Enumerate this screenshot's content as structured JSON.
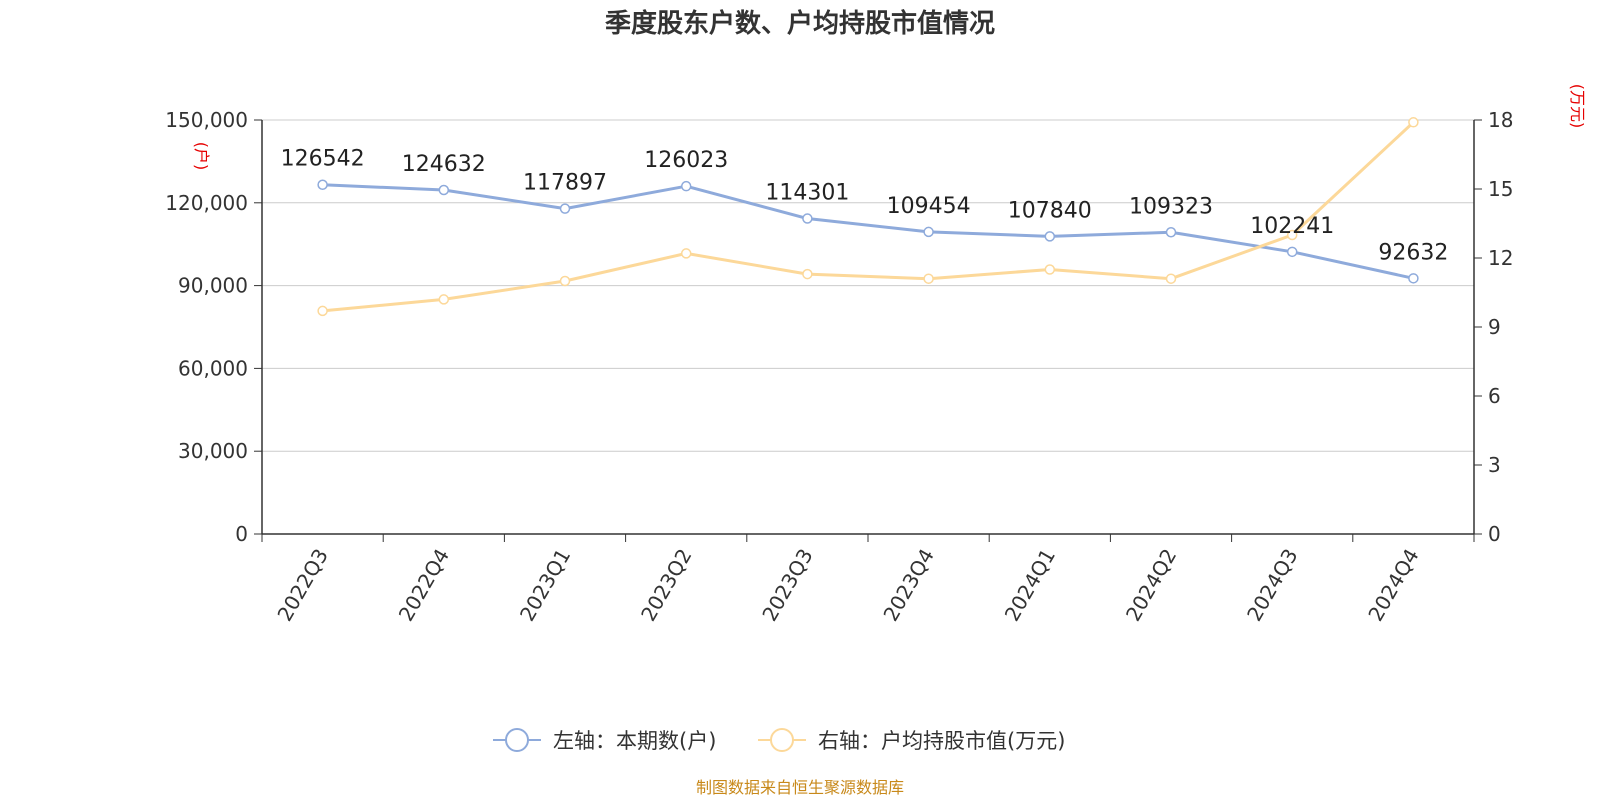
{
  "chart_data": {
    "type": "line",
    "title": "季度股东户数、户均持股市值情况",
    "categories": [
      "2022Q3",
      "2022Q4",
      "2023Q1",
      "2023Q2",
      "2023Q3",
      "2023Q4",
      "2024Q1",
      "2024Q2",
      "2024Q3",
      "2024Q4"
    ],
    "series": [
      {
        "name": "左轴：本期数(户)",
        "axis": "left",
        "color": "#8eaadb",
        "values": [
          126542,
          124632,
          117897,
          126023,
          114301,
          109454,
          107840,
          109323,
          102241,
          92632
        ],
        "show_labels": true
      },
      {
        "name": "右轴：户均持股市值(万元)",
        "axis": "right",
        "color": "#fcd899",
        "values": [
          9.7,
          10.2,
          11.0,
          12.2,
          11.3,
          11.1,
          11.5,
          11.1,
          13.0,
          17.9
        ],
        "show_labels": false
      }
    ],
    "left_axis": {
      "unit": "(户)",
      "ylim": [
        0,
        150000
      ],
      "ticks": [
        0,
        30000,
        60000,
        90000,
        120000,
        150000
      ],
      "tick_labels": [
        "0",
        "30,000",
        "60,000",
        "90,000",
        "120,000",
        "150,000"
      ]
    },
    "right_axis": {
      "unit": "(万元)",
      "ylim": [
        0,
        18
      ],
      "ticks": [
        0,
        3,
        6,
        9,
        12,
        15,
        18
      ],
      "tick_labels": [
        "0",
        "3",
        "6",
        "9",
        "12",
        "15",
        "18"
      ]
    },
    "grid": true,
    "legend_position": "bottom-center",
    "source": "制图数据来自恒生聚源数据库"
  }
}
